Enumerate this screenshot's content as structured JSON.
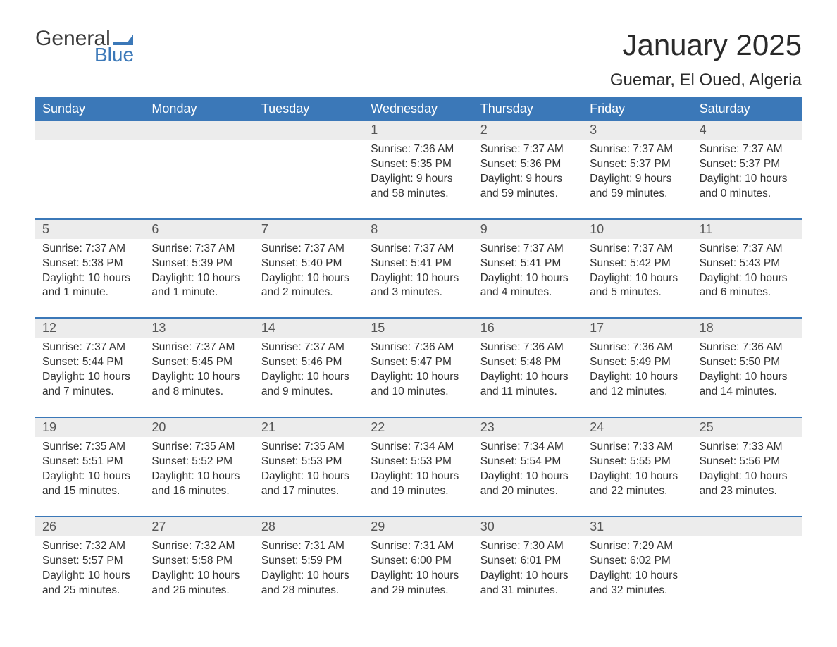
{
  "logo": {
    "text1": "General",
    "text2": "Blue",
    "flag_color": "#3b78b8"
  },
  "title": "January 2025",
  "location": "Guemar, El Oued, Algeria",
  "colors": {
    "header_bg": "#3b78b8",
    "header_text": "#ffffff",
    "daynum_bg": "#ececec",
    "row_divider": "#3b78b8",
    "body_bg": "#ffffff",
    "text": "#333333"
  },
  "typography": {
    "title_fontsize": 42,
    "location_fontsize": 24,
    "weekday_fontsize": 18,
    "daynum_fontsize": 18,
    "cell_fontsize": 15.5
  },
  "weekdays": [
    "Sunday",
    "Monday",
    "Tuesday",
    "Wednesday",
    "Thursday",
    "Friday",
    "Saturday"
  ],
  "weeks": [
    [
      {
        "n": "",
        "sunrise": "",
        "sunset": "",
        "daylight": ""
      },
      {
        "n": "",
        "sunrise": "",
        "sunset": "",
        "daylight": ""
      },
      {
        "n": "",
        "sunrise": "",
        "sunset": "",
        "daylight": ""
      },
      {
        "n": "1",
        "sunrise": "7:36 AM",
        "sunset": "5:35 PM",
        "daylight": "9 hours and 58 minutes."
      },
      {
        "n": "2",
        "sunrise": "7:37 AM",
        "sunset": "5:36 PM",
        "daylight": "9 hours and 59 minutes."
      },
      {
        "n": "3",
        "sunrise": "7:37 AM",
        "sunset": "5:37 PM",
        "daylight": "9 hours and 59 minutes."
      },
      {
        "n": "4",
        "sunrise": "7:37 AM",
        "sunset": "5:37 PM",
        "daylight": "10 hours and 0 minutes."
      }
    ],
    [
      {
        "n": "5",
        "sunrise": "7:37 AM",
        "sunset": "5:38 PM",
        "daylight": "10 hours and 1 minute."
      },
      {
        "n": "6",
        "sunrise": "7:37 AM",
        "sunset": "5:39 PM",
        "daylight": "10 hours and 1 minute."
      },
      {
        "n": "7",
        "sunrise": "7:37 AM",
        "sunset": "5:40 PM",
        "daylight": "10 hours and 2 minutes."
      },
      {
        "n": "8",
        "sunrise": "7:37 AM",
        "sunset": "5:41 PM",
        "daylight": "10 hours and 3 minutes."
      },
      {
        "n": "9",
        "sunrise": "7:37 AM",
        "sunset": "5:41 PM",
        "daylight": "10 hours and 4 minutes."
      },
      {
        "n": "10",
        "sunrise": "7:37 AM",
        "sunset": "5:42 PM",
        "daylight": "10 hours and 5 minutes."
      },
      {
        "n": "11",
        "sunrise": "7:37 AM",
        "sunset": "5:43 PM",
        "daylight": "10 hours and 6 minutes."
      }
    ],
    [
      {
        "n": "12",
        "sunrise": "7:37 AM",
        "sunset": "5:44 PM",
        "daylight": "10 hours and 7 minutes."
      },
      {
        "n": "13",
        "sunrise": "7:37 AM",
        "sunset": "5:45 PM",
        "daylight": "10 hours and 8 minutes."
      },
      {
        "n": "14",
        "sunrise": "7:37 AM",
        "sunset": "5:46 PM",
        "daylight": "10 hours and 9 minutes."
      },
      {
        "n": "15",
        "sunrise": "7:36 AM",
        "sunset": "5:47 PM",
        "daylight": "10 hours and 10 minutes."
      },
      {
        "n": "16",
        "sunrise": "7:36 AM",
        "sunset": "5:48 PM",
        "daylight": "10 hours and 11 minutes."
      },
      {
        "n": "17",
        "sunrise": "7:36 AM",
        "sunset": "5:49 PM",
        "daylight": "10 hours and 12 minutes."
      },
      {
        "n": "18",
        "sunrise": "7:36 AM",
        "sunset": "5:50 PM",
        "daylight": "10 hours and 14 minutes."
      }
    ],
    [
      {
        "n": "19",
        "sunrise": "7:35 AM",
        "sunset": "5:51 PM",
        "daylight": "10 hours and 15 minutes."
      },
      {
        "n": "20",
        "sunrise": "7:35 AM",
        "sunset": "5:52 PM",
        "daylight": "10 hours and 16 minutes."
      },
      {
        "n": "21",
        "sunrise": "7:35 AM",
        "sunset": "5:53 PM",
        "daylight": "10 hours and 17 minutes."
      },
      {
        "n": "22",
        "sunrise": "7:34 AM",
        "sunset": "5:53 PM",
        "daylight": "10 hours and 19 minutes."
      },
      {
        "n": "23",
        "sunrise": "7:34 AM",
        "sunset": "5:54 PM",
        "daylight": "10 hours and 20 minutes."
      },
      {
        "n": "24",
        "sunrise": "7:33 AM",
        "sunset": "5:55 PM",
        "daylight": "10 hours and 22 minutes."
      },
      {
        "n": "25",
        "sunrise": "7:33 AM",
        "sunset": "5:56 PM",
        "daylight": "10 hours and 23 minutes."
      }
    ],
    [
      {
        "n": "26",
        "sunrise": "7:32 AM",
        "sunset": "5:57 PM",
        "daylight": "10 hours and 25 minutes."
      },
      {
        "n": "27",
        "sunrise": "7:32 AM",
        "sunset": "5:58 PM",
        "daylight": "10 hours and 26 minutes."
      },
      {
        "n": "28",
        "sunrise": "7:31 AM",
        "sunset": "5:59 PM",
        "daylight": "10 hours and 28 minutes."
      },
      {
        "n": "29",
        "sunrise": "7:31 AM",
        "sunset": "6:00 PM",
        "daylight": "10 hours and 29 minutes."
      },
      {
        "n": "30",
        "sunrise": "7:30 AM",
        "sunset": "6:01 PM",
        "daylight": "10 hours and 31 minutes."
      },
      {
        "n": "31",
        "sunrise": "7:29 AM",
        "sunset": "6:02 PM",
        "daylight": "10 hours and 32 minutes."
      },
      {
        "n": "",
        "sunrise": "",
        "sunset": "",
        "daylight": ""
      }
    ]
  ],
  "labels": {
    "sunrise": "Sunrise:",
    "sunset": "Sunset:",
    "daylight": "Daylight:"
  }
}
